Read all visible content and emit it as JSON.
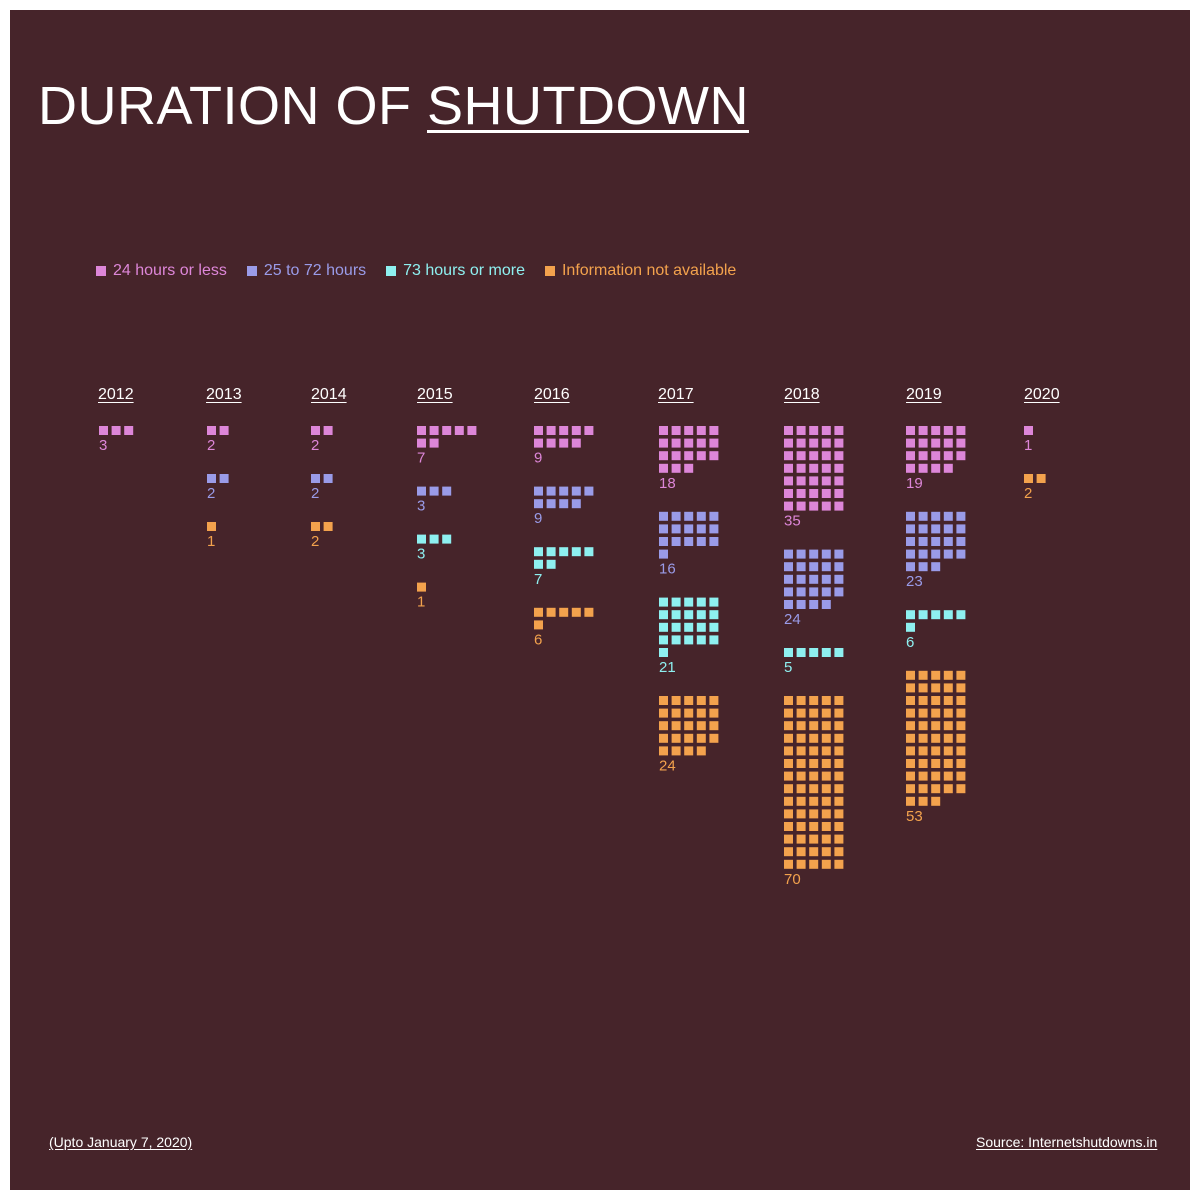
{
  "title": {
    "prefix": "DURATION OF",
    "emphasis": "SHUTDOWN"
  },
  "colors": {
    "background": "#46242a",
    "text": "#ffffff",
    "24 hours or less": "#dd86d8",
    "25 to 72 hours": "#9a9be8",
    "73 hours or more": "#8ef0f0",
    "Information not available": "#f3a24d"
  },
  "legend": [
    {
      "label": "24 hours or less",
      "color": "#dd86d8"
    },
    {
      "label": "25 to 72 hours",
      "color": "#9a9be8"
    },
    {
      "label": "73 hours or more",
      "color": "#8ef0f0"
    },
    {
      "label": "Information not available",
      "color": "#f3a24d"
    }
  ],
  "footnote": "(Upto January 7, 2020)",
  "source": "Source: Internetshutdowns.in",
  "chart_data": {
    "type": "waffle",
    "categories": [
      "2012",
      "2013",
      "2014",
      "2015",
      "2016",
      "2017",
      "2018",
      "2019",
      "2020"
    ],
    "series": [
      {
        "name": "24 hours or less",
        "values": [
          3,
          2,
          2,
          7,
          9,
          18,
          35,
          19,
          1
        ]
      },
      {
        "name": "25 to 72 hours",
        "values": [
          0,
          2,
          2,
          3,
          9,
          16,
          24,
          23,
          0
        ]
      },
      {
        "name": "73 hours or more",
        "values": [
          0,
          0,
          0,
          3,
          7,
          21,
          5,
          6,
          0
        ]
      },
      {
        "name": "Information not available",
        "values": [
          0,
          1,
          2,
          1,
          6,
          24,
          70,
          53,
          2
        ]
      }
    ],
    "units_per_row": 5,
    "legend_position": "top-left"
  }
}
